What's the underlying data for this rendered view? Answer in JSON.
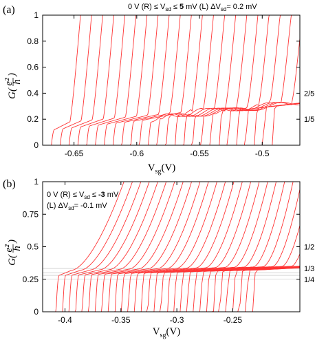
{
  "chart_data": [
    {
      "type": "line",
      "panel_label": "(a)",
      "annotation_parts": [
        "0 V (R) ≤ V",
        "sd",
        " ≤ ",
        "5",
        " mV (L)  ΔV",
        "sd",
        "= 0.2 mV"
      ],
      "xlabel_main": "V",
      "xlabel_sub": "sg",
      "xlabel_unit": "(V)",
      "ylabel_main": "G(",
      "ylabel_num": "e²",
      "ylabel_den": "h",
      "ylabel_close": ")",
      "xlim": [
        -0.675,
        -0.47
      ],
      "ylim": [
        0,
        1
      ],
      "xticks": [
        -0.65,
        -0.6,
        -0.55,
        -0.5
      ],
      "xtick_labels": [
        "-0.65",
        "-0.6",
        "-0.55",
        "-0.5"
      ],
      "yticks": [
        0,
        0.2,
        0.4,
        0.6,
        0.8,
        1
      ],
      "ytick_labels": [
        "0",
        "0.2",
        "0.4",
        "0.6",
        "0.8",
        "1"
      ],
      "right_labels": [
        {
          "text": "2/5",
          "y": 0.4
        },
        {
          "text": "1/5",
          "y": 0.2
        }
      ],
      "series_count": 26,
      "x_first": -0.668,
      "x_last": -0.492,
      "plateau_first": 0.12,
      "plateau_last": 0.3,
      "grid": false,
      "line_color": "#ff3333"
    },
    {
      "type": "line",
      "panel_label": "(b)",
      "annotation_line1_parts": [
        "0 V (R) ≤ V",
        "sd",
        " ≤ ",
        "-3",
        " mV"
      ],
      "annotation_line2_parts": [
        "(L) ΔV",
        "sd",
        "= -0.1 mV"
      ],
      "xlabel_main": "V",
      "xlabel_sub": "sg",
      "xlabel_unit": "(V)",
      "ylabel_main": "G(",
      "ylabel_num": "e²",
      "ylabel_den": "h",
      "ylabel_close": ")",
      "xlim": [
        -0.42,
        -0.19
      ],
      "ylim": [
        0,
        1
      ],
      "xticks": [
        -0.4,
        -0.35,
        -0.3,
        -0.25
      ],
      "xtick_labels": [
        "-0.4",
        "-0.35",
        "-0.3",
        "-0.25"
      ],
      "yticks": [
        0,
        0.25,
        0.5,
        0.75,
        1
      ],
      "ytick_labels": [
        "0",
        "0.25",
        "0.5",
        "0.75",
        "1"
      ],
      "right_labels": [
        {
          "text": "1/2",
          "y": 0.5
        },
        {
          "text": "1/3",
          "y": 0.333
        },
        {
          "text": "1/4",
          "y": 0.25
        }
      ],
      "guide_lines": [
        0.333,
        0.3,
        0.28,
        0.25
      ],
      "series_count": 31,
      "x_first": -0.408,
      "x_last": -0.232,
      "plateau_first": 0.28,
      "plateau_last": 0.32,
      "grid": false,
      "line_color": "#ff3333"
    }
  ]
}
